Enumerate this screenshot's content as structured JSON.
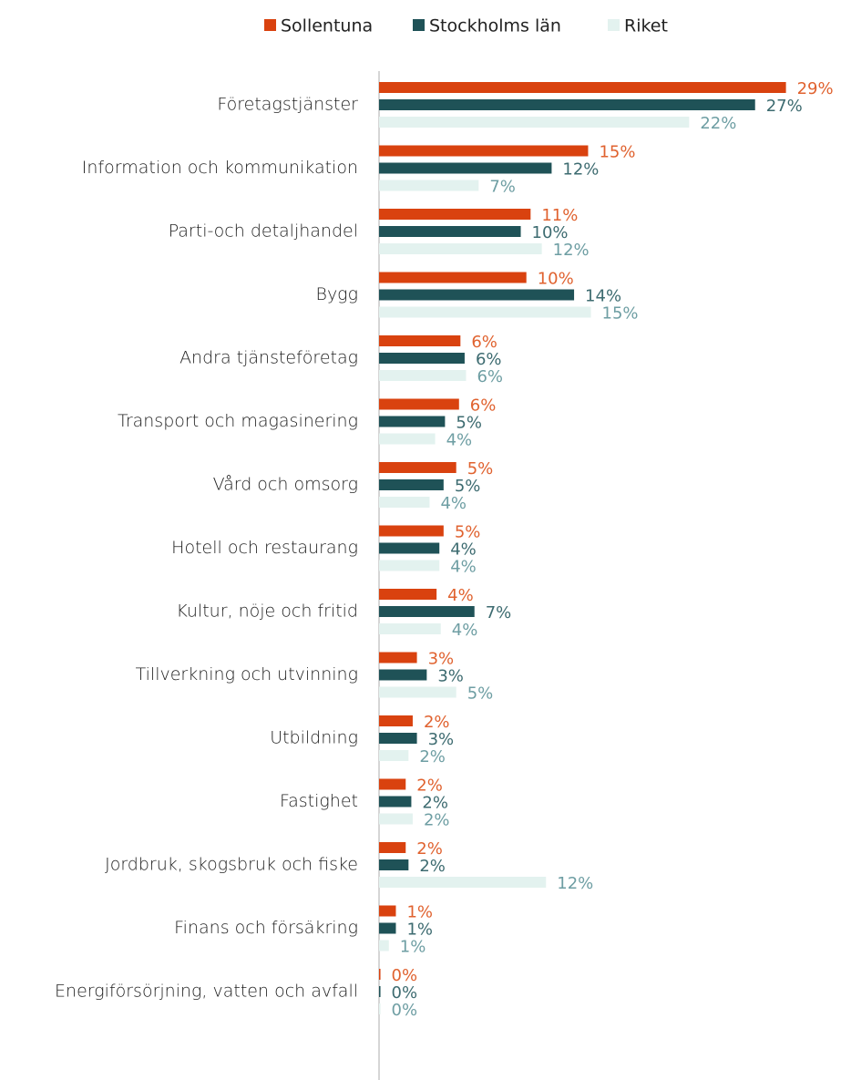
{
  "chart_data": {
    "type": "bar",
    "orientation": "horizontal",
    "categories": [
      "Företagstjänster",
      "Information och kommunikation",
      "Parti-och detaljhandel",
      "Bygg",
      "Andra tjänsteföretag",
      "Transport och magasinering",
      "Vård och omsorg",
      "Hotell och restaurang",
      "Kultur, nöje och fritid",
      "Tillverkning och utvinning",
      "Utbildning",
      "Fastighet",
      "Jordbruk, skogsbruk och fiske",
      "Finans och försäkring",
      "Energiförsörjning, vatten och avfall"
    ],
    "series": [
      {
        "name": "Sollentuna",
        "color": "#d9420f",
        "label_color": "#e0622f",
        "values": [
          29.0,
          14.9,
          10.8,
          10.5,
          5.8,
          5.7,
          5.5,
          4.6,
          4.1,
          2.7,
          2.4,
          1.9,
          1.9,
          1.2,
          0.1
        ],
        "value_labels": [
          "29%",
          "15%",
          "11%",
          "10%",
          "6%",
          "6%",
          "5%",
          "5%",
          "4%",
          "3%",
          "2%",
          "2%",
          "2%",
          "1%",
          "0%"
        ]
      },
      {
        "name": "Stockholms län",
        "color": "#1f5257",
        "label_color": "#3d6b70",
        "values": [
          26.8,
          12.3,
          10.1,
          13.9,
          6.1,
          4.7,
          4.6,
          4.3,
          6.8,
          3.4,
          2.7,
          2.3,
          2.1,
          1.2,
          0.1
        ],
        "value_labels": [
          "27%",
          "12%",
          "10%",
          "14%",
          "6%",
          "5%",
          "5%",
          "4%",
          "7%",
          "3%",
          "3%",
          "2%",
          "2%",
          "1%",
          "0%"
        ]
      },
      {
        "name": "Riket",
        "color": "#e3f2ef",
        "label_color": "#6e9ea3",
        "values": [
          22.1,
          7.1,
          11.6,
          15.1,
          6.2,
          4.0,
          3.6,
          4.3,
          4.4,
          5.5,
          2.1,
          2.4,
          11.9,
          0.7,
          0.1
        ],
        "value_labels": [
          "22%",
          "7%",
          "12%",
          "15%",
          "6%",
          "4%",
          "4%",
          "4%",
          "4%",
          "5%",
          "2%",
          "2%",
          "12%",
          "1%",
          "0%"
        ]
      }
    ],
    "legend": "top"
  }
}
